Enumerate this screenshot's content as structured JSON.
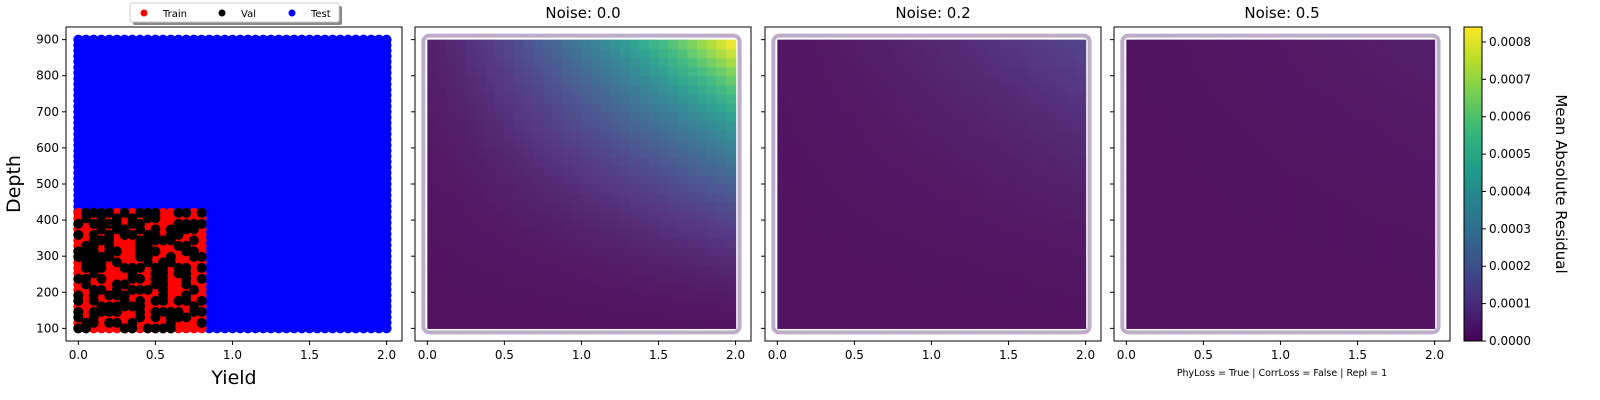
{
  "chart_data": [
    {
      "type": "scatter",
      "title": "",
      "xlabel": "Yield",
      "ylabel": "Depth",
      "xlim": [
        -0.08,
        2.1
      ],
      "ylim": [
        65,
        935
      ],
      "xticks": [
        "0.0",
        "0.5",
        "1.0",
        "1.5",
        "2.0"
      ],
      "yticks": [
        "100",
        "200",
        "300",
        "400",
        "500",
        "600",
        "700",
        "800",
        "900"
      ],
      "legend": {
        "position": "top-center",
        "entries": [
          {
            "name": "Train",
            "color": "#ff0000"
          },
          {
            "name": "Val",
            "color": "#000000"
          },
          {
            "name": "Test",
            "color": "#0000ff"
          }
        ]
      },
      "series": [
        {
          "name": "Train",
          "color": "#ff0000",
          "region": {
            "x": [
              0.0,
              0.8
            ],
            "y": [
              100,
              420
            ]
          }
        },
        {
          "name": "Val",
          "color": "#000000",
          "region": {
            "x": [
              0.0,
              0.8
            ],
            "y": [
              100,
              420
            ]
          },
          "fraction": 0.55
        },
        {
          "name": "Test",
          "color": "#0000ff",
          "region": {
            "x": [
              0.0,
              2.0
            ],
            "y": [
              100,
              900
            ]
          }
        }
      ]
    },
    {
      "type": "heatmap",
      "title": "Noise: 0.0",
      "xlim": [
        -0.08,
        2.1
      ],
      "ylim": [
        65,
        935
      ],
      "xticks": [
        "0.0",
        "0.5",
        "1.0",
        "1.5",
        "2.0"
      ],
      "x_range": [
        0,
        2
      ],
      "y_range": [
        100,
        900
      ],
      "max_residual": 0.00083
    },
    {
      "type": "heatmap",
      "title": "Noise: 0.2",
      "xlim": [
        -0.08,
        2.1
      ],
      "ylim": [
        65,
        935
      ],
      "xticks": [
        "0.0",
        "0.5",
        "1.0",
        "1.5",
        "2.0"
      ],
      "x_range": [
        0,
        2
      ],
      "y_range": [
        100,
        900
      ],
      "max_residual": 0.00013
    },
    {
      "type": "heatmap",
      "title": "Noise: 0.5",
      "xlim": [
        -0.08,
        2.1
      ],
      "ylim": [
        65,
        935
      ],
      "xticks": [
        "0.0",
        "0.5",
        "1.0",
        "1.5",
        "2.0"
      ],
      "x_range": [
        0,
        2
      ],
      "y_range": [
        100,
        900
      ],
      "max_residual": 3e-05
    }
  ],
  "colorbar": {
    "label": "Mean Absolute Residual",
    "colormap": "viridis",
    "range": [
      0,
      0.00084
    ],
    "ticks": [
      {
        "value": 0.0,
        "label": "0.0000"
      },
      {
        "value": 0.0001,
        "label": "0.0001"
      },
      {
        "value": 0.0002,
        "label": "0.0002"
      },
      {
        "value": 0.0003,
        "label": "0.0003"
      },
      {
        "value": 0.0004,
        "label": "0.0004"
      },
      {
        "value": 0.0005,
        "label": "0.0005"
      },
      {
        "value": 0.0006,
        "label": "0.0006"
      },
      {
        "value": 0.0007,
        "label": "0.0007"
      },
      {
        "value": 0.0008,
        "label": "0.0008"
      }
    ]
  },
  "footer": "PhyLoss = True | CorrLoss = False | Repl = 1"
}
